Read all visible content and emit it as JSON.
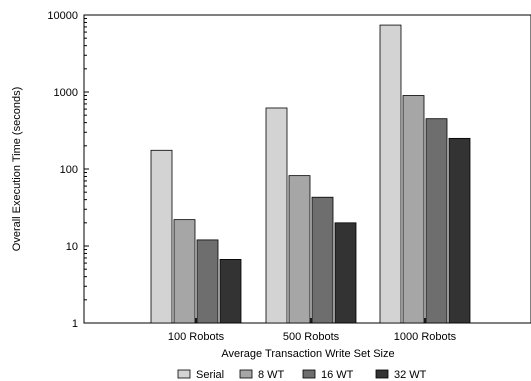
{
  "chart_data": {
    "type": "bar",
    "title": "",
    "xlabel": "Average Transaction Write Set Size",
    "ylabel": "Overall Execution Time (seconds)",
    "yscale": "log",
    "ylim": [
      1,
      10000
    ],
    "yticks": [
      "1",
      "10",
      "100",
      "1000",
      "10000"
    ],
    "categories": [
      "100 Robots",
      "500 Robots",
      "1000 Robots"
    ],
    "series": [
      {
        "name": "Serial",
        "color": "#d3d3d3",
        "values": [
          175,
          620,
          7400
        ]
      },
      {
        "name": "8 WT",
        "color": "#a6a6a6",
        "values": [
          22,
          82,
          900
        ]
      },
      {
        "name": "16 WT",
        "color": "#6e6e6e",
        "values": [
          12,
          43,
          450
        ]
      },
      {
        "name": "32 WT",
        "color": "#333333",
        "values": [
          6.7,
          20,
          250
        ]
      }
    ],
    "legend_position": "bottom",
    "grid": false
  }
}
